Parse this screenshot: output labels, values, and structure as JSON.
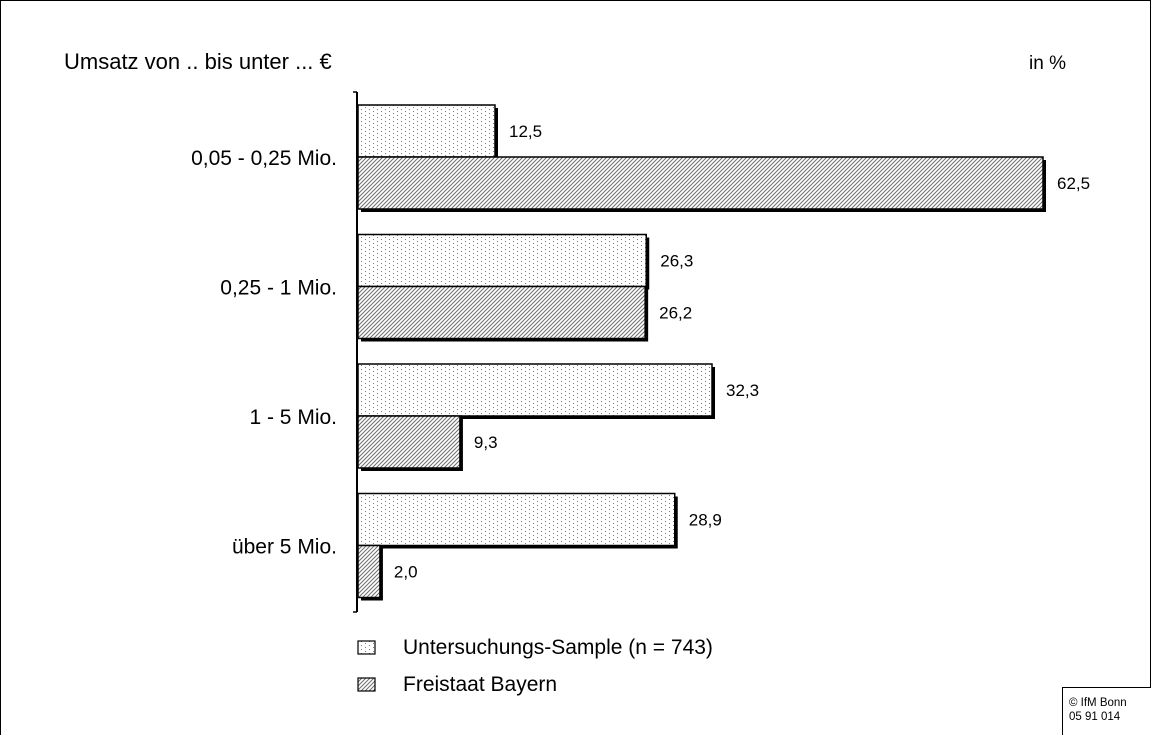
{
  "chart_data": {
    "type": "bar",
    "orientation": "horizontal",
    "title": "Umsatz von .. bis unter ... €",
    "unit_label": "in %",
    "categories": [
      "0,05 - 0,25 Mio.",
      "0,25 - 1 Mio.",
      "1 - 5 Mio.",
      "über 5 Mio."
    ],
    "series": [
      {
        "name": "Untersuchungs-Sample (n = 743)",
        "values": [
          12.5,
          26.3,
          32.3,
          28.9
        ],
        "value_labels": [
          "12,5",
          "26,3",
          "32,3",
          "28,9"
        ],
        "pattern": "dotted"
      },
      {
        "name": "Freistaat Bayern",
        "values": [
          62.5,
          26.2,
          9.3,
          2.0
        ],
        "value_labels": [
          "62,5",
          "26,2",
          "9,3",
          "2,0"
        ],
        "pattern": "diagonal-hatch"
      }
    ],
    "xlim": [
      0,
      62.5
    ],
    "grid": false,
    "legend_position": "bottom",
    "colors": {
      "bar_fill": "#ffffff",
      "pattern": "#7a7a7a",
      "outline": "#000000"
    }
  },
  "copyright": {
    "line1": "© IfM Bonn",
    "line2": "05 91 014"
  }
}
